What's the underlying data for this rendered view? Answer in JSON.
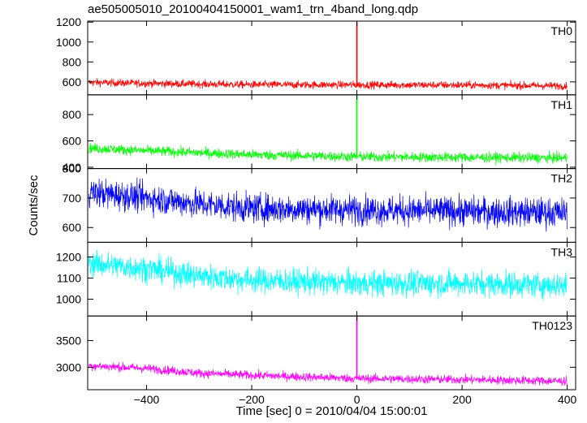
{
  "chart_data": {
    "type": "line",
    "title": "ae505005010_20100404150001_wam1_trn_4band_long.qdp",
    "xlabel": "Time [sec] 0 = 2010/04/04 15:00:01",
    "ylabel": "Counts/sec",
    "xlim": [
      -512,
      416
    ],
    "x_ticks": [
      -400,
      -200,
      0,
      200,
      400
    ],
    "grid": false,
    "panels": [
      {
        "name": "TH0",
        "color": "#ff0000",
        "ylim": [
          470,
          1210
        ],
        "y_ticks": [
          600,
          800,
          1000,
          1200
        ],
        "baseline": [
          [
            -510,
            595
          ],
          [
            -400,
            585
          ],
          [
            -200,
            572
          ],
          [
            0,
            570
          ],
          [
            200,
            568
          ],
          [
            400,
            560
          ]
        ],
        "noise_amplitude": 35,
        "spike": {
          "x": 0,
          "y": 1200
        }
      },
      {
        "name": "TH1",
        "color": "#00ff00",
        "ylim": [
          390,
          950
        ],
        "y_ticks": [
          400,
          600,
          800
        ],
        "baseline": [
          [
            -510,
            545
          ],
          [
            -400,
            525
          ],
          [
            -200,
            495
          ],
          [
            0,
            480
          ],
          [
            200,
            475
          ],
          [
            400,
            470
          ]
        ],
        "noise_amplitude": 35,
        "spike": {
          "x": 0,
          "y": 950
        }
      },
      {
        "name": "TH2",
        "color": "#0000ff",
        "ylim": [
          550,
          800
        ],
        "y_ticks": [
          600,
          700,
          800
        ],
        "baseline": [
          [
            -510,
            720
          ],
          [
            -400,
            700
          ],
          [
            -300,
            680
          ],
          [
            -200,
            665
          ],
          [
            0,
            660
          ],
          [
            200,
            655
          ],
          [
            400,
            650
          ]
        ],
        "noise_amplitude": 45,
        "spike": null
      },
      {
        "name": "TH3",
        "color": "#00ffff",
        "ylim": [
          920,
          1270
        ],
        "y_ticks": [
          1000,
          1100,
          1200
        ],
        "baseline": [
          [
            -510,
            1170
          ],
          [
            -400,
            1145
          ],
          [
            -300,
            1110
          ],
          [
            -200,
            1090
          ],
          [
            0,
            1075
          ],
          [
            200,
            1075
          ],
          [
            400,
            1065
          ]
        ],
        "noise_amplitude": 55,
        "spike": null
      },
      {
        "name": "TH0123",
        "color": "#ff00ff",
        "ylim": [
          2580,
          3960
        ],
        "y_ticks": [
          3000,
          3500
        ],
        "baseline": [
          [
            -510,
            3030
          ],
          [
            -400,
            2980
          ],
          [
            -300,
            2890
          ],
          [
            -200,
            2850
          ],
          [
            0,
            2790
          ],
          [
            200,
            2770
          ],
          [
            400,
            2740
          ]
        ],
        "noise_amplitude": 75,
        "spike": {
          "x": 0,
          "y": 3960
        }
      }
    ]
  }
}
